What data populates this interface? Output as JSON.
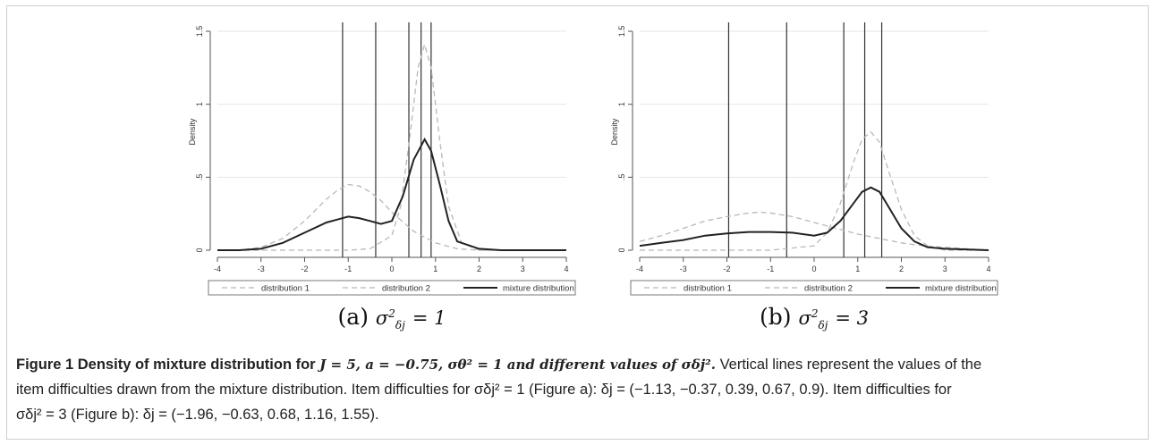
{
  "panels": [
    {
      "id": "a",
      "sublabel_prefix": "(a)",
      "sublabel_sigma": "σ",
      "sublabel_sup": "2",
      "sublabel_sub": "δj",
      "sublabel_value": "= 1"
    },
    {
      "id": "b",
      "sublabel_prefix": "(b)",
      "sublabel_sigma": "σ",
      "sublabel_sup": "2",
      "sublabel_sub": "δj",
      "sublabel_value": "= 3"
    }
  ],
  "caption": {
    "title_prefix": "Figure 1 Density of mixture distribution for ",
    "title_math": "J = 5, a = −0.75, σθ² = 1 and different values of σδj².",
    "line1_rest": "Vertical lines represent the values of the",
    "line2": "item difficulties drawn from the mixture distribution. Item difficulties for σδj² = 1 (Figure a): δj = (−1.13, −0.37, 0.39, 0.67, 0.9). Item difficulties for",
    "line3": "σδj² = 3 (Figure b): δj = (−1.96, −0.63, 0.68, 1.16, 1.55)."
  },
  "chart_data": [
    {
      "type": "line",
      "ylabel": "Density",
      "xlabel": "",
      "xlim": [
        -4,
        4
      ],
      "ylim": [
        0,
        1.5
      ],
      "x_ticks": [
        "-4",
        "-3",
        "-2",
        "-1",
        "0",
        "1",
        "2",
        "3",
        "4"
      ],
      "y_ticks": [
        "0",
        ".5",
        "1",
        "1.5"
      ],
      "grid": true,
      "legend_position": "bottom",
      "legend": [
        "distribution 1",
        "distribution 2",
        "mixture distribution"
      ],
      "vertical_lines": [
        -1.13,
        -0.37,
        0.39,
        0.67,
        0.9
      ],
      "series": [
        {
          "name": "distribution 1",
          "style": "dashed",
          "color": "#b8b8b8",
          "x": [
            -4,
            -3.5,
            -3,
            -2.5,
            -2,
            -1.5,
            -1.25,
            -1,
            -0.75,
            -0.5,
            -0.25,
            0,
            0.5,
            1,
            1.5,
            2,
            2.5,
            3,
            4
          ],
          "y": [
            0.0,
            0.0,
            0.02,
            0.08,
            0.2,
            0.35,
            0.41,
            0.45,
            0.44,
            0.4,
            0.34,
            0.26,
            0.13,
            0.05,
            0.01,
            0.0,
            0.0,
            0.0,
            0.0
          ]
        },
        {
          "name": "distribution 2",
          "style": "dashed",
          "color": "#b8b8b8",
          "x": [
            -4,
            -1,
            -0.5,
            0,
            0.2,
            0.4,
            0.6,
            0.75,
            0.9,
            1.1,
            1.3,
            1.6,
            2,
            3,
            4
          ],
          "y": [
            0.0,
            0.0,
            0.01,
            0.1,
            0.3,
            0.75,
            1.25,
            1.41,
            1.25,
            0.75,
            0.3,
            0.05,
            0.0,
            0.0,
            0.0
          ]
        },
        {
          "name": "mixture distribution",
          "style": "solid",
          "color": "#222222",
          "x": [
            -4,
            -3.5,
            -3,
            -2.5,
            -2,
            -1.5,
            -1.25,
            -1,
            -0.75,
            -0.5,
            -0.25,
            0,
            0.25,
            0.5,
            0.75,
            0.9,
            1.1,
            1.3,
            1.5,
            2,
            2.5,
            3,
            4
          ],
          "y": [
            0.0,
            0.0,
            0.01,
            0.05,
            0.12,
            0.19,
            0.21,
            0.23,
            0.22,
            0.2,
            0.18,
            0.2,
            0.37,
            0.62,
            0.76,
            0.68,
            0.45,
            0.2,
            0.06,
            0.01,
            0.0,
            0.0,
            0.0
          ]
        }
      ]
    },
    {
      "type": "line",
      "ylabel": "Density",
      "xlabel": "",
      "xlim": [
        -4,
        4
      ],
      "ylim": [
        0,
        1.5
      ],
      "x_ticks": [
        "-4",
        "-3",
        "-2",
        "-1",
        "0",
        "1",
        "2",
        "3",
        "4"
      ],
      "y_ticks": [
        "0",
        ".5",
        "1",
        "1.5"
      ],
      "grid": true,
      "legend_position": "bottom",
      "legend": [
        "distribution 1",
        "distribution 2",
        "mixture distribution"
      ],
      "vertical_lines": [
        -1.96,
        -0.63,
        0.68,
        1.16,
        1.55
      ],
      "series": [
        {
          "name": "distribution 1",
          "style": "dashed",
          "color": "#b8b8b8",
          "x": [
            -4,
            -3.5,
            -3,
            -2.5,
            -2,
            -1.5,
            -1.25,
            -1,
            -0.5,
            0,
            0.5,
            1,
            1.5,
            2,
            2.5,
            3,
            3.5,
            4
          ],
          "y": [
            0.06,
            0.1,
            0.15,
            0.2,
            0.23,
            0.255,
            0.26,
            0.255,
            0.23,
            0.19,
            0.15,
            0.11,
            0.08,
            0.05,
            0.03,
            0.02,
            0.01,
            0.0
          ]
        },
        {
          "name": "distribution 2",
          "style": "dashed",
          "color": "#b8b8b8",
          "x": [
            -4,
            -1,
            0,
            0.3,
            0.6,
            0.9,
            1.1,
            1.3,
            1.5,
            1.7,
            2,
            2.3,
            2.6,
            3,
            4
          ],
          "y": [
            0.0,
            0.0,
            0.03,
            0.12,
            0.32,
            0.6,
            0.76,
            0.81,
            0.74,
            0.55,
            0.28,
            0.1,
            0.03,
            0.0,
            0.0
          ]
        },
        {
          "name": "mixture distribution",
          "style": "solid",
          "color": "#222222",
          "x": [
            -4,
            -3.5,
            -3,
            -2.5,
            -2,
            -1.5,
            -1,
            -0.5,
            0,
            0.3,
            0.6,
            0.9,
            1.1,
            1.3,
            1.5,
            1.7,
            2,
            2.3,
            2.6,
            3,
            4
          ],
          "y": [
            0.03,
            0.05,
            0.07,
            0.1,
            0.115,
            0.125,
            0.125,
            0.12,
            0.1,
            0.12,
            0.2,
            0.32,
            0.4,
            0.43,
            0.4,
            0.3,
            0.15,
            0.06,
            0.02,
            0.01,
            0.0
          ]
        }
      ]
    }
  ]
}
